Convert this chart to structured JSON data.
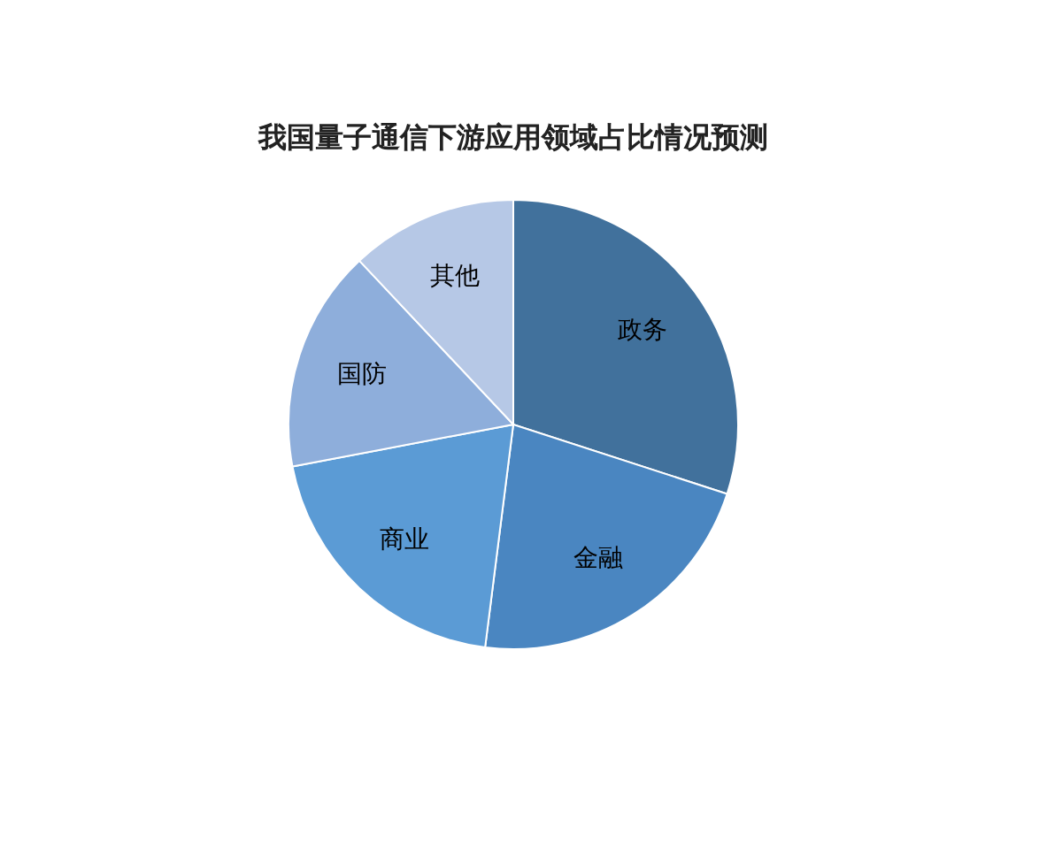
{
  "chart_data": {
    "type": "pie",
    "title": "我国量子通信下游应用领域占比情况预测",
    "categories": [
      "政务",
      "金融",
      "商业",
      "国防",
      "其他"
    ],
    "values": [
      30,
      22,
      20,
      16,
      12
    ],
    "colors": [
      "#41719c",
      "#4a86c1",
      "#5b9bd5",
      "#8eaedb",
      "#b6c8e6"
    ],
    "legend": false
  }
}
